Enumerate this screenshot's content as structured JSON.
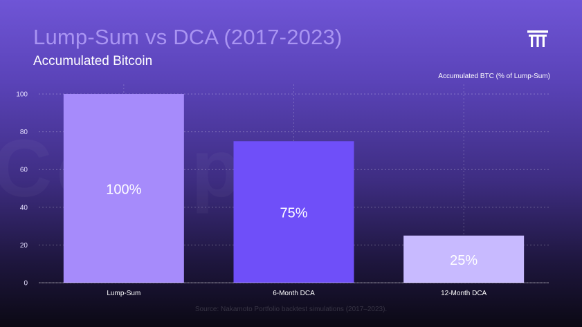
{
  "title": "Lump-Sum vs DCA (2017-2023)",
  "subtitle": "Accumulated Bitcoin",
  "source": "Source: Nakamoto Portfolio backtest simulations (2017–2023).",
  "watermark": "Coinpex",
  "logo_icon": "pillars-logo-icon",
  "colors": {
    "title": "#a994f2",
    "lump_sum": "#a68bfb",
    "dca_6m": "#6f4ff9",
    "dca_12m": "#c8baff"
  },
  "chart_data": {
    "type": "bar",
    "categories": [
      "Lump-Sum",
      "6-Month DCA",
      "12-Month DCA"
    ],
    "values": [
      100,
      75,
      25
    ],
    "data_labels": [
      "100%",
      "75%",
      "25%"
    ],
    "bar_colors": [
      "#a68bfb",
      "#6f4ff9",
      "#c8baff"
    ],
    "title": "Lump-Sum vs DCA (2017-2023)",
    "subtitle": "Accumulated Bitcoin",
    "xlabel": "",
    "ylabel": "Accumulated BTC (% of Lump-Sum)",
    "ylim": [
      0,
      100
    ],
    "yticks": [
      0,
      20,
      40,
      60,
      80,
      100
    ],
    "grid": true,
    "legend": "none"
  }
}
